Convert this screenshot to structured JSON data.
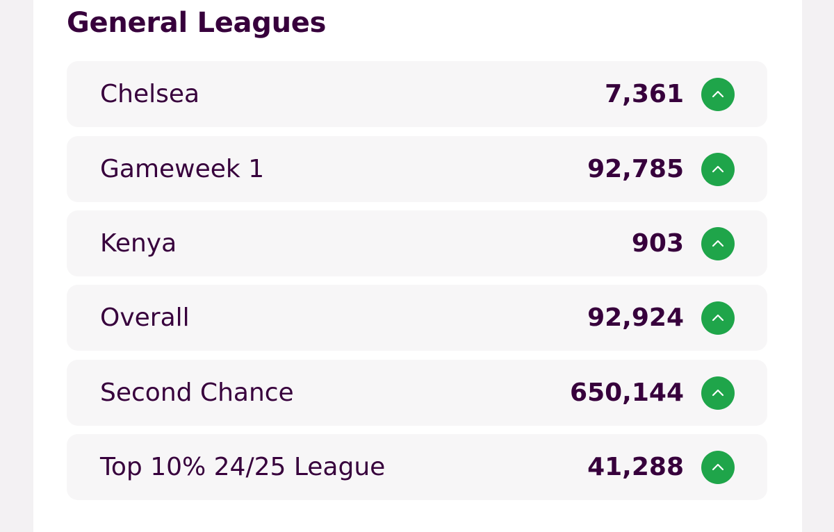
{
  "section": {
    "title": "General Leagues"
  },
  "leagues": [
    {
      "name": "Chelsea",
      "rank": "7,361",
      "movement": "up",
      "movement_icon": "chevron-up-icon",
      "movement_color": "#1fa54a"
    },
    {
      "name": "Gameweek 1",
      "rank": "92,785",
      "movement": "up",
      "movement_icon": "chevron-up-icon",
      "movement_color": "#1fa54a"
    },
    {
      "name": "Kenya",
      "rank": "903",
      "movement": "up",
      "movement_icon": "chevron-up-icon",
      "movement_color": "#1fa54a"
    },
    {
      "name": "Overall",
      "rank": "92,924",
      "movement": "up",
      "movement_icon": "chevron-up-icon",
      "movement_color": "#1fa54a"
    },
    {
      "name": "Second Chance",
      "rank": "650,144",
      "movement": "up",
      "movement_icon": "chevron-up-icon",
      "movement_color": "#1fa54a"
    },
    {
      "name": "Top 10% 24/25 League",
      "rank": "41,288",
      "movement": "up",
      "movement_icon": "chevron-up-icon",
      "movement_color": "#1fa54a"
    }
  ],
  "colors": {
    "text": "#37003c",
    "row_background": "#f7f6f7",
    "rank_up": "#1fa54a",
    "page_background": "#f3f1f3"
  }
}
